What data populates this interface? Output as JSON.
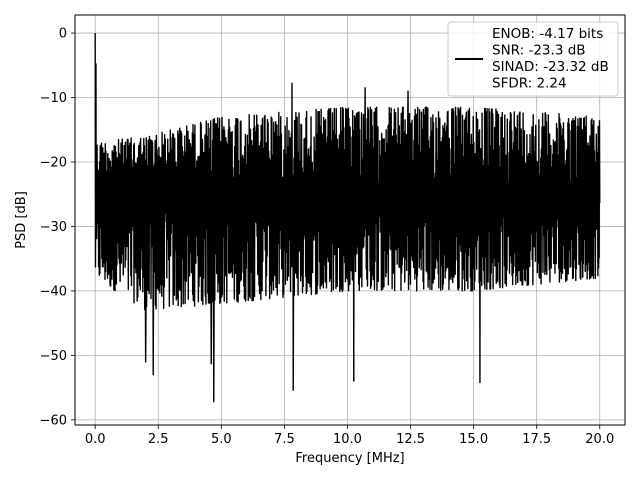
{
  "chart_data": {
    "type": "line",
    "xlabel": "Frequency [MHz]",
    "ylabel": "PSD [dB]",
    "xlim": [
      -0.8,
      21.0
    ],
    "ylim": [
      -60.8,
      2.8
    ],
    "xticks": [
      0.0,
      2.5,
      5.0,
      7.5,
      10.0,
      12.5,
      15.0,
      17.5,
      20.0
    ],
    "xtick_labels": [
      "0.0",
      "2.5",
      "5.0",
      "7.5",
      "10.0",
      "12.5",
      "15.0",
      "17.5",
      "20.0"
    ],
    "yticks": [
      0,
      -10,
      -20,
      -30,
      -40,
      -50,
      -60
    ],
    "ytick_labels": [
      "0",
      "−10",
      "−20",
      "−30",
      "−40",
      "−50",
      "−60"
    ],
    "grid": true,
    "legend_position": "top-right",
    "series": [
      {
        "name_lines": [
          "ENOB: -4.17 bits",
          "SNR: -23.3 dB",
          "SINAD: -23.32 dB",
          "SFDR: 2.24"
        ],
        "color": "#000000",
        "x_range": [
          0.0,
          20.0
        ],
        "points": 1600,
        "baseline_db": -25,
        "envelope_top_db": [
          [
            0.0,
            -17
          ],
          [
            2.0,
            -16
          ],
          [
            5.0,
            -13
          ],
          [
            10.0,
            -11.5
          ],
          [
            15.0,
            -11.5
          ],
          [
            20.0,
            -13
          ]
        ],
        "envelope_bottom_db": [
          [
            0.0,
            -38
          ],
          [
            2.0,
            -43
          ],
          [
            5.0,
            -42
          ],
          [
            10.0,
            -40
          ],
          [
            15.0,
            -40
          ],
          [
            20.0,
            -38
          ]
        ],
        "peaks": [
          {
            "x": 0.0,
            "y": 0.0
          },
          {
            "x": 0.03,
            "y": -4.8
          },
          {
            "x": 7.8,
            "y": -7.8
          },
          {
            "x": 10.7,
            "y": -8.5
          },
          {
            "x": 12.4,
            "y": -9.0
          }
        ],
        "dips": [
          {
            "x": 4.7,
            "y": -57.2
          },
          {
            "x": 7.85,
            "y": -55.4
          },
          {
            "x": 10.25,
            "y": -54.0
          },
          {
            "x": 15.25,
            "y": -54.2
          },
          {
            "x": 2.3,
            "y": -53.0
          },
          {
            "x": 4.6,
            "y": -51.3
          },
          {
            "x": 2.0,
            "y": -51.0
          }
        ]
      }
    ]
  }
}
